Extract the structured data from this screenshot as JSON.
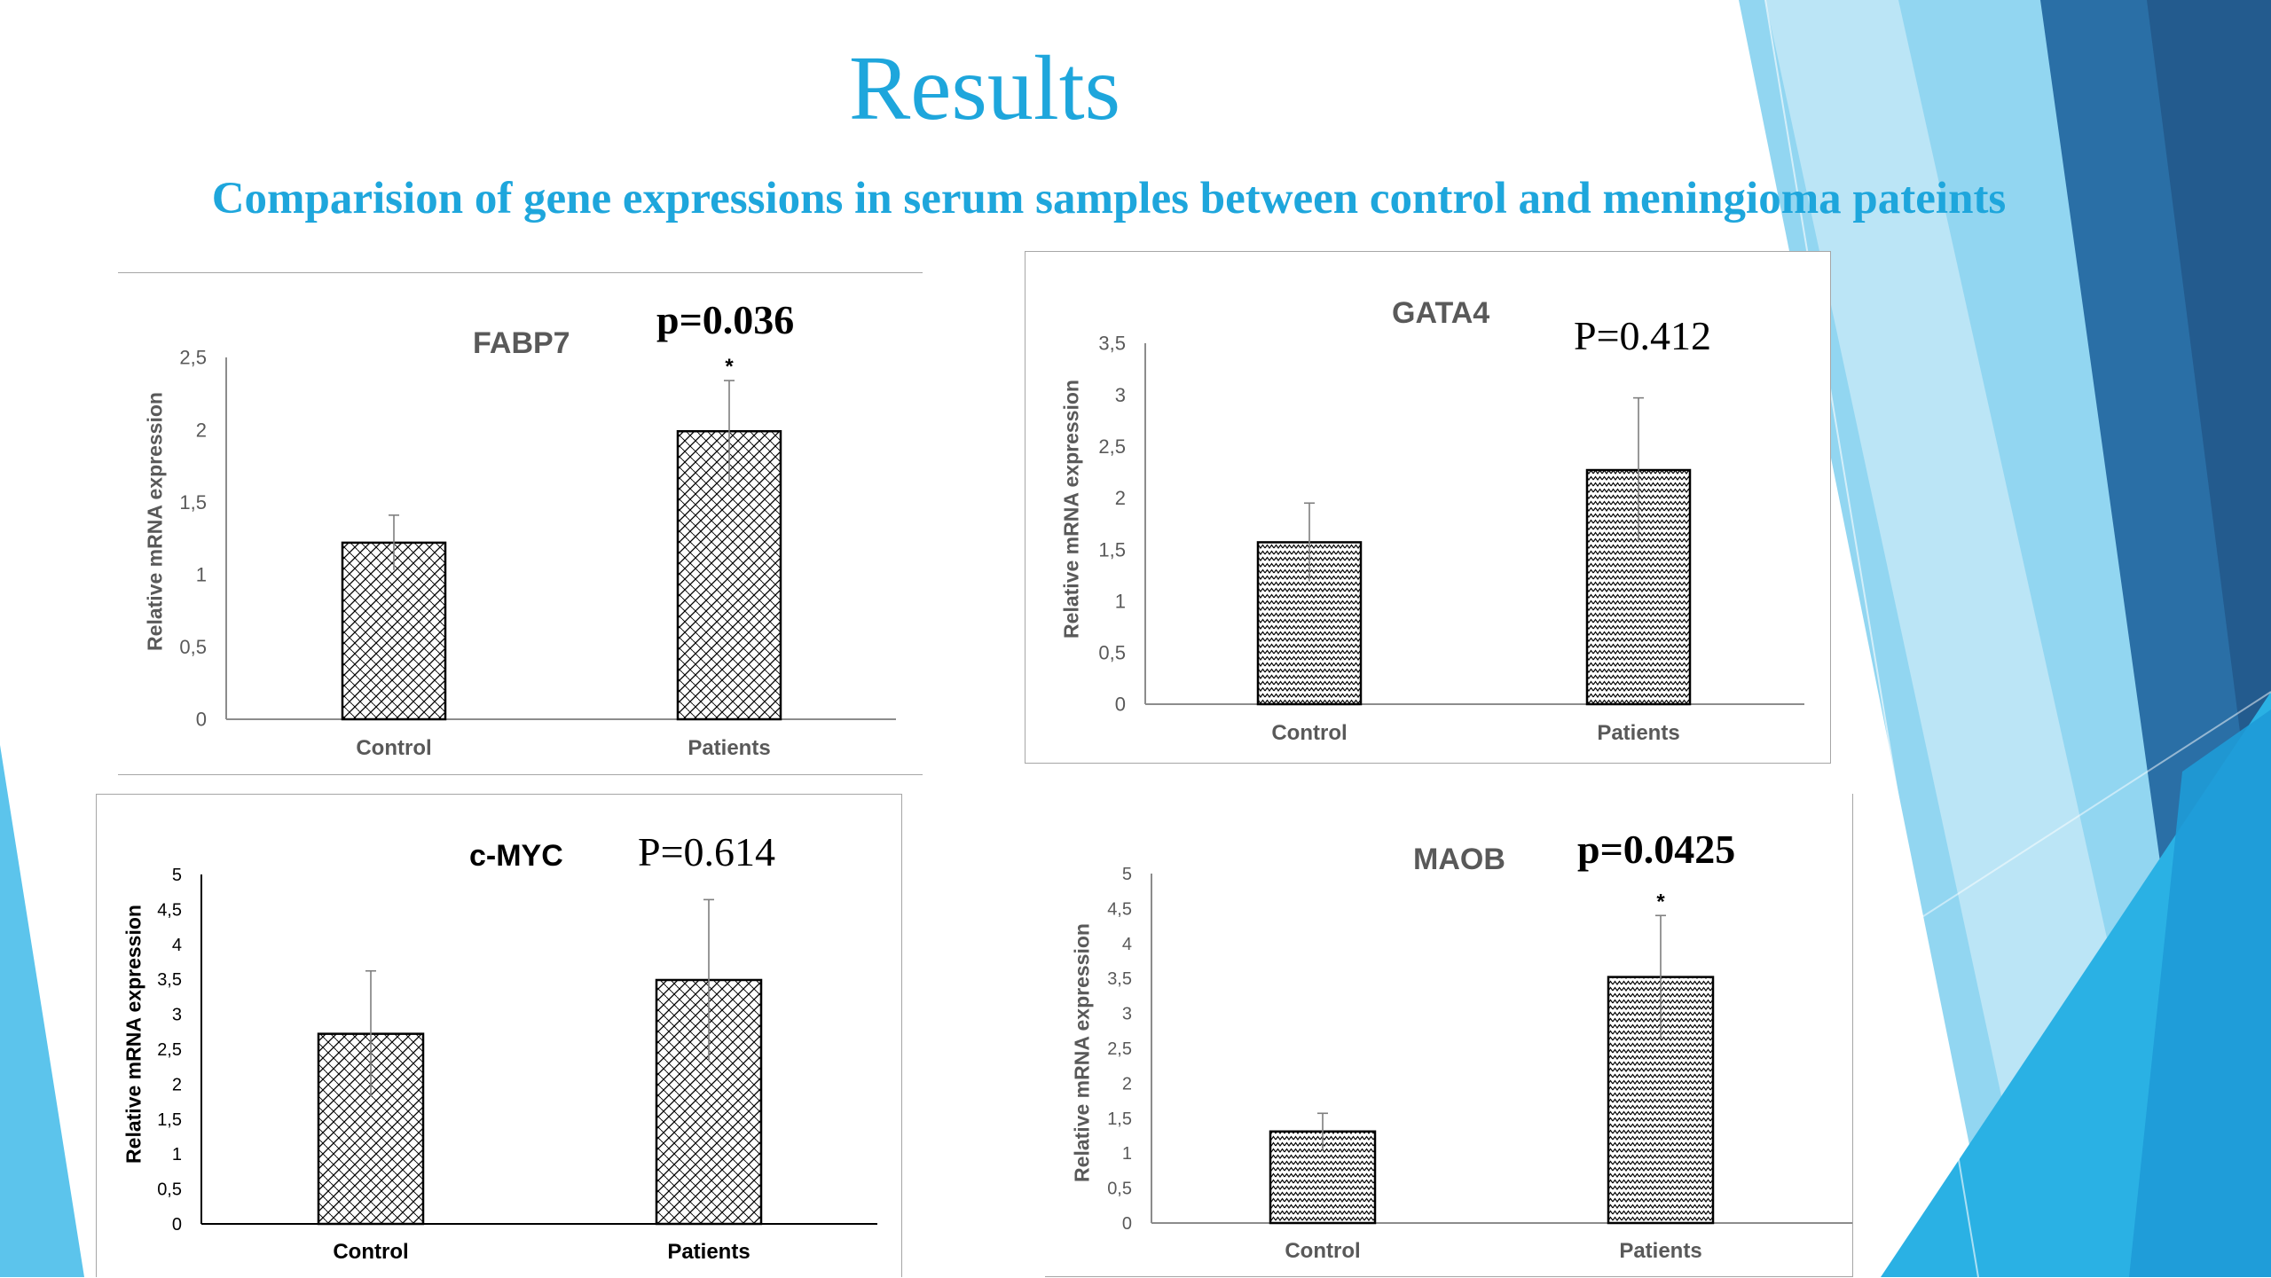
{
  "slide": {
    "title": "Results",
    "subtitle": "Comparision of gene expressions in serum samples between control and meningioma pateints"
  },
  "colors": {
    "title": "#1ea6dc",
    "deco_light": "#86d1ef",
    "deco_mid": "#2ab1e4",
    "deco_dark": "#2a6fa6",
    "deco_navy": "#235b8e"
  },
  "chart_data": [
    {
      "type": "bar",
      "title": "FABP7",
      "p_value": "p=0.036",
      "ylabel": "Relative mRNA expression",
      "categories": [
        "Control",
        "Patients"
      ],
      "values": [
        1.22,
        1.99
      ],
      "errors": [
        0.19,
        0.35
      ],
      "significance": [
        "",
        "*"
      ],
      "ylim": [
        0,
        2.5
      ],
      "yticks": [
        "0",
        "0,5",
        "1",
        "1,5",
        "2",
        "2,5"
      ]
    },
    {
      "type": "bar",
      "title": "GATA4",
      "p_value": "P=0.412",
      "ylabel": "Relative mRNA expression",
      "categories": [
        "Control",
        "Patients"
      ],
      "values": [
        1.57,
        2.27
      ],
      "errors": [
        0.38,
        0.7
      ],
      "significance": [
        "",
        ""
      ],
      "ylim": [
        0,
        3.5
      ],
      "yticks": [
        "0",
        "0,5",
        "1",
        "1,5",
        "2",
        "2,5",
        "3",
        "3,5"
      ]
    },
    {
      "type": "bar",
      "title": "c-MYC",
      "p_value": "P=0.614",
      "ylabel": "Relative mRNA expression",
      "categories": [
        "Control",
        "Patients"
      ],
      "values": [
        2.72,
        3.49
      ],
      "errors": [
        0.9,
        1.15
      ],
      "significance": [
        "",
        ""
      ],
      "ylim": [
        0,
        5
      ],
      "yticks": [
        "0",
        "0,5",
        "1",
        "1,5",
        "2",
        "2,5",
        "3",
        "3,5",
        "4",
        "4,5",
        "5"
      ]
    },
    {
      "type": "bar",
      "title": "MAOB",
      "p_value": "p=0.0425",
      "ylabel": "Relative mRNA expression",
      "categories": [
        "Control",
        "Patients"
      ],
      "values": [
        1.31,
        3.52
      ],
      "errors": [
        0.26,
        0.88
      ],
      "significance": [
        "",
        "*"
      ],
      "ylim": [
        0,
        5
      ],
      "yticks": [
        "0",
        "0,5",
        "1",
        "1,5",
        "2",
        "2,5",
        "3",
        "3,5",
        "4",
        "4,5",
        "5"
      ]
    }
  ]
}
